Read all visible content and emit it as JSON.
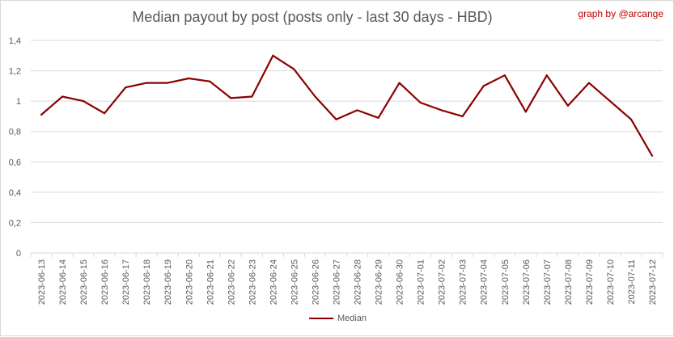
{
  "chart_title": "Median payout by post (posts only - last 30 days - HBD)",
  "credit": "graph by @arcange",
  "colors": {
    "line": "#8b0000",
    "grid": "#d9d9d9",
    "text": "#595959",
    "credit": "#c00000"
  },
  "chart_data": {
    "type": "line",
    "title": "Median payout by post (posts only - last 30 days - HBD)",
    "xlabel": "",
    "ylabel": "",
    "ylim": [
      0,
      1.4
    ],
    "yticks": [
      "0",
      "0,2",
      "0,4",
      "0,6",
      "0,8",
      "1",
      "1,2",
      "1,4"
    ],
    "grid": "horizontal",
    "legend_position": "bottom",
    "categories": [
      "2023-06-13",
      "2023-06-14",
      "2023-06-15",
      "2023-06-16",
      "2023-06-17",
      "2023-06-18",
      "2023-06-19",
      "2023-06-20",
      "2023-06-21",
      "2023-06-22",
      "2023-06-23",
      "2023-06-24",
      "2023-06-25",
      "2023-06-26",
      "2023-06-27",
      "2023-06-28",
      "2023-06-29",
      "2023-06-30",
      "2023-07-01",
      "2023-07-02",
      "2023-07-03",
      "2023-07-04",
      "2023-07-05",
      "2023-07-06",
      "2023-07-07",
      "2023-07-08",
      "2023-07-09",
      "2023-07-10",
      "2023-07-11",
      "2023-07-12"
    ],
    "series": [
      {
        "name": "Median",
        "values": [
          0.91,
          1.03,
          1.0,
          0.92,
          1.09,
          1.12,
          1.12,
          1.15,
          1.13,
          1.02,
          1.03,
          1.3,
          1.21,
          1.03,
          0.88,
          0.94,
          0.89,
          1.12,
          0.99,
          0.94,
          0.9,
          1.1,
          1.17,
          0.93,
          1.17,
          0.97,
          1.12,
          1.0,
          0.88,
          0.64
        ]
      }
    ]
  }
}
